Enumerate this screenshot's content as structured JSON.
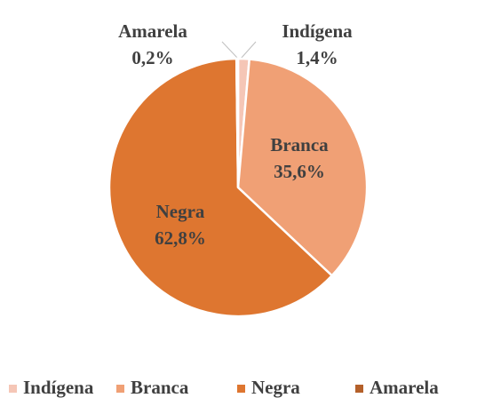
{
  "chart_data": {
    "type": "pie",
    "categories": [
      "Indígena",
      "Branca",
      "Negra",
      "Amarela"
    ],
    "values": [
      1.4,
      35.6,
      62.8,
      0.2
    ],
    "value_labels": [
      "1,4%",
      "35,6%",
      "62,8%",
      "0,2%"
    ],
    "colors": [
      "#f5c6b6",
      "#f0a075",
      "#de7630",
      "#b4602a"
    ],
    "legend": "bottom"
  }
}
